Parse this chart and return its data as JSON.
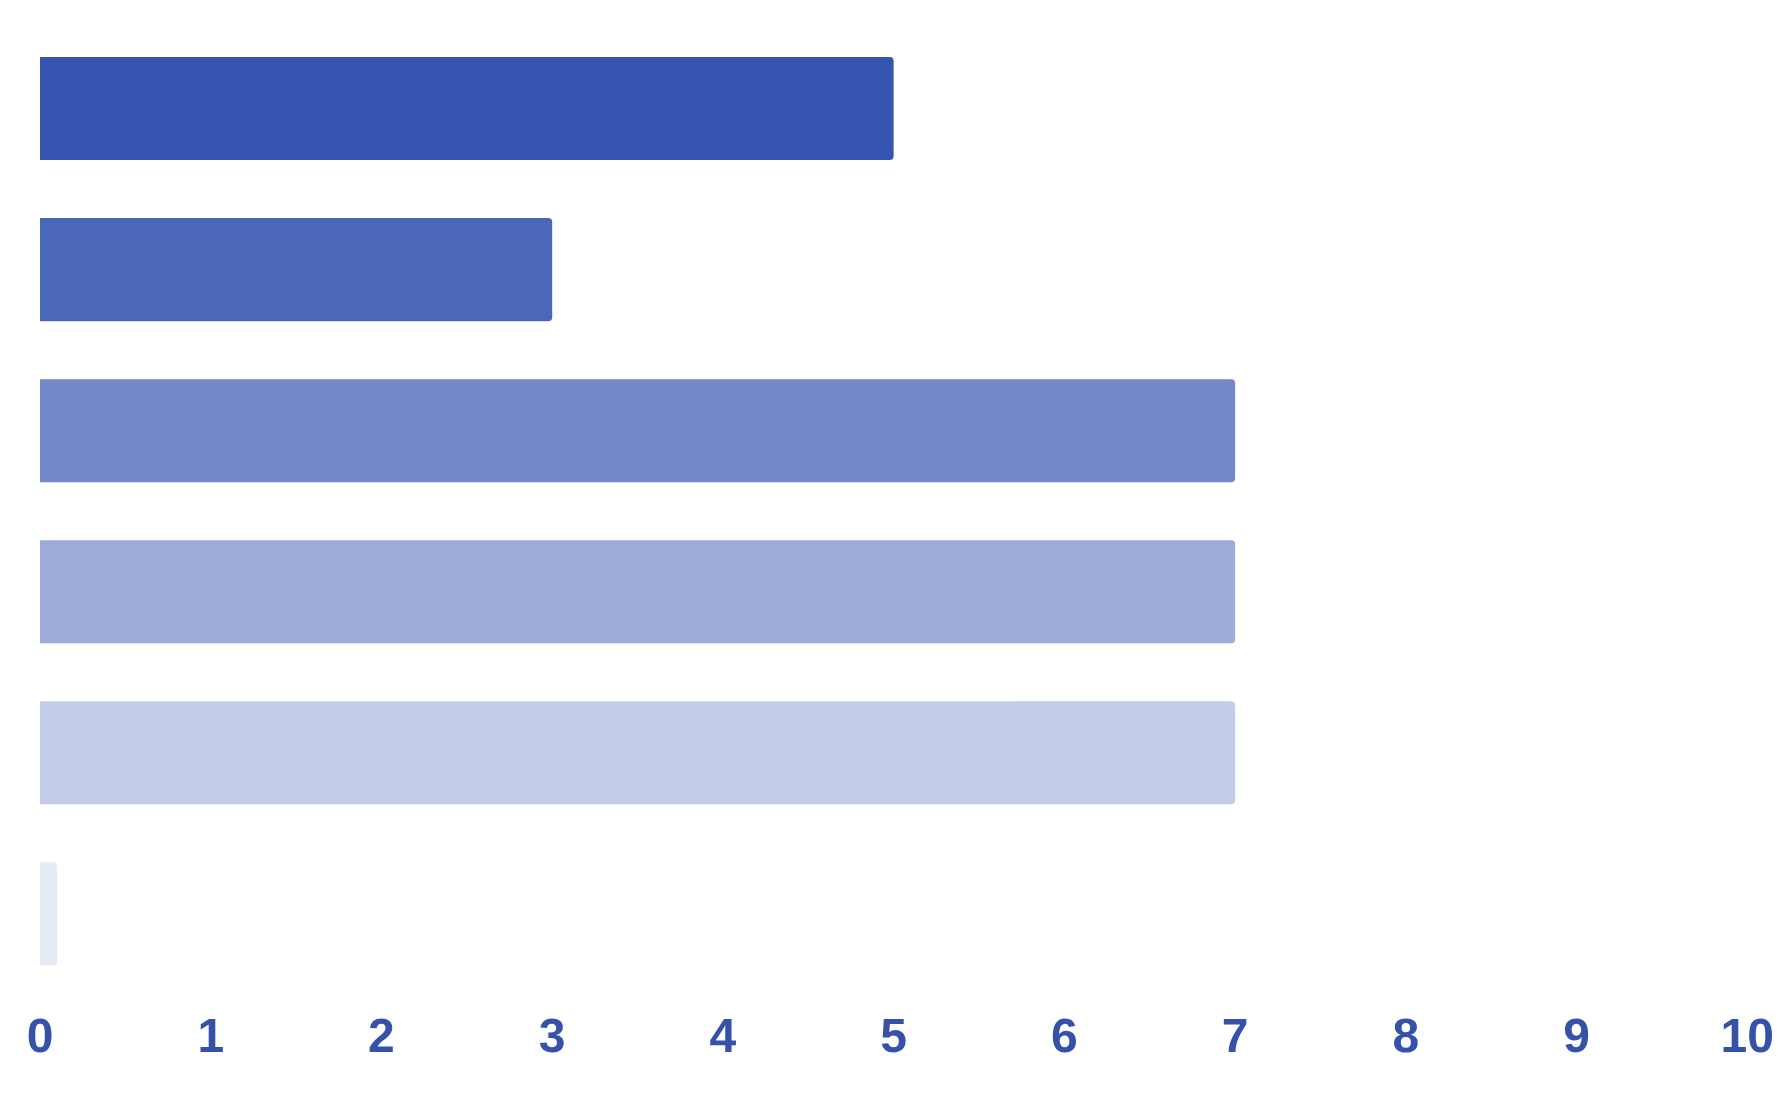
{
  "chart_data": {
    "type": "bar",
    "orientation": "horizontal",
    "categories": [
      null,
      null,
      null,
      null,
      null,
      null
    ],
    "values": [
      5,
      3,
      7,
      7,
      7,
      0.1
    ],
    "colors": [
      "#3555b0",
      "#4a67b8",
      "#7388c6",
      "#9cabd7",
      "#c2cce8",
      "#e6eaf5"
    ],
    "xlim": [
      0,
      10
    ],
    "xticks": [
      0,
      1,
      2,
      3,
      4,
      5,
      6,
      7,
      8,
      9,
      10
    ],
    "grid": false,
    "legend": false
  }
}
